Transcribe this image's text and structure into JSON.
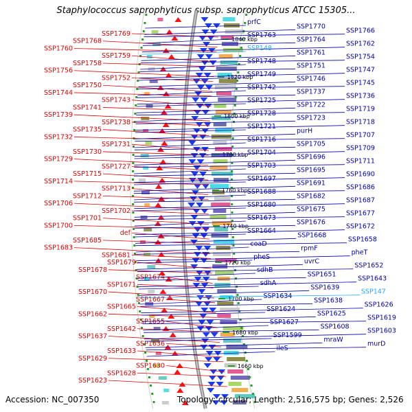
{
  "title": "Staphylococcus saprophyticus subsp. saprophyticus ATCC 15305...",
  "footer": {
    "accession": "Accession: NC_007350",
    "topology": "Topology: circular; Length: 2,516,575 bp; Genes: 2,526"
  },
  "colors": {
    "left_labels": "#dd0000",
    "right_labels": "#0000aa",
    "highlight_labels": "#22aaff",
    "forward_genes": "#ff1111",
    "reverse_genes": "#1a3cf0",
    "backbone": "#999999",
    "tick_marks": "#2a9a2a"
  },
  "scale_labels": [
    "1840 kbp",
    "1820 kbp",
    "1800 kbp",
    "1780 kbp",
    "1760 kbp",
    "1740 kbp",
    "1720 kbp",
    "1700 kbp",
    "1680 kbp",
    "1660 kbp"
  ],
  "left_labels": [
    "SSP1769",
    "SSP1768",
    "SSP1760",
    "SSP1759",
    "SSP1758",
    "SSP1756",
    "SSP1752",
    "SSP1750",
    "SSP1744",
    "SSP1743",
    "SSP1741",
    "SSP1739",
    "SSP1738",
    "SSP1735",
    "SSP1732",
    "SSP1731",
    "SSP1730",
    "SSP1729",
    "SSP1727",
    "SSP1715",
    "SSP1714",
    "SSP1713",
    "SSP1712",
    "SSP1706",
    "SSP1702",
    "SSP1701",
    "SSP1700",
    "def",
    "SSP1685",
    "SSP1683",
    "SSP1681",
    "SSP1679",
    "SSP1678",
    "SSP1674",
    "SSP1671",
    "SSP1670",
    "SSP1667",
    "SSP1665",
    "SSP1662",
    "SSP1655",
    "SSP1642",
    "SSP1637",
    "SSP1636",
    "SSP1633",
    "SSP1629",
    "SSP1630",
    "SSP1628",
    "SSP1623"
  ],
  "right_labels": [
    "prfC",
    "SSP1770",
    "SSP1766",
    "SSP1763",
    "SSP1764",
    "SSP1762",
    "SSP148",
    "SSP1761",
    "SSP1754",
    "SSP1748",
    "SSP1751",
    "SSP1747",
    "SSP1749",
    "SSP1746",
    "SSP1745",
    "SSP1742",
    "SSP1737",
    "SSP1736",
    "SSP1725",
    "SSP1722",
    "SSP1719",
    "SSP1728",
    "SSP1723",
    "SSP1718",
    "SSP1721",
    "purH",
    "SSP1707",
    "SSP1716",
    "SSP1705",
    "SSP1709",
    "SSP1704",
    "SSP1696",
    "SSP1711",
    "SSP1703",
    "SSP1695",
    "SSP1690",
    "SSP1697",
    "SSP1691",
    "SSP1686",
    "SSP1688",
    "SSP1682",
    "SSP1687",
    "SSP1680",
    "SSP1675",
    "SSP1677",
    "SSP1673",
    "SSP1676",
    "SSP1672",
    "SSP1664",
    "SSP1668",
    "SSP1658",
    "coaD",
    "rpmF",
    "pheT",
    "pheS",
    "uvrC",
    "SSP1652",
    "sdhB",
    "SSP1651",
    "SSP1643",
    "sdhA",
    "SSP1639",
    "SSP147",
    "SSP1634",
    "SSP1638",
    "SSP1626",
    "SSP1624",
    "SSP1625",
    "SSP1619",
    "SSP1627",
    "SSP1608",
    "SSP1603",
    "SSP1599",
    "mraW",
    "murD",
    "ileS"
  ]
}
